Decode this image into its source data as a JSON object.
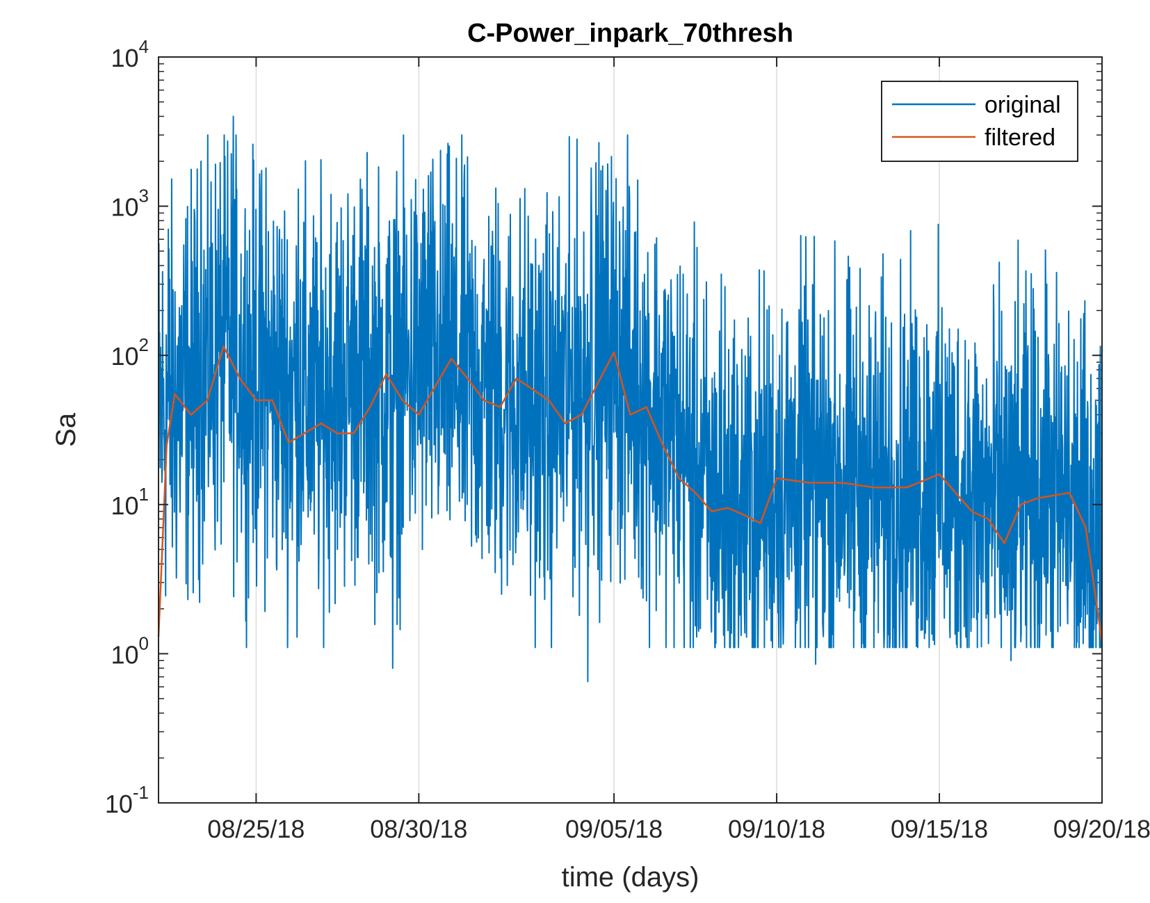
{
  "chart_data": {
    "type": "line",
    "title": "C-Power_inpark_70thresh",
    "xlabel": "time (days)",
    "ylabel": "Sa",
    "y_scale": "log",
    "ylim": [
      0.1,
      10000
    ],
    "y_ticks": [
      {
        "value": 0.1,
        "base": "10",
        "exp": "-1"
      },
      {
        "value": 1,
        "base": "10",
        "exp": "0"
      },
      {
        "value": 10,
        "base": "10",
        "exp": "1"
      },
      {
        "value": 100,
        "base": "10",
        "exp": "2"
      },
      {
        "value": 1000,
        "base": "10",
        "exp": "3"
      },
      {
        "value": 10000,
        "base": "10",
        "exp": "4"
      }
    ],
    "xlim": [
      "2018-08-22",
      "2018-09-20"
    ],
    "x_ticks": [
      {
        "date": "2018-08-25",
        "label": "08/25/18"
      },
      {
        "date": "2018-08-30",
        "label": "08/30/18"
      },
      {
        "date": "2018-09-05",
        "label": "09/05/18"
      },
      {
        "date": "2018-09-10",
        "label": "09/10/18"
      },
      {
        "date": "2018-09-15",
        "label": "09/15/18"
      },
      {
        "date": "2018-09-20",
        "label": "09/20/18"
      }
    ],
    "grid": "vertical",
    "legend_position": "top-right",
    "series": [
      {
        "name": "original",
        "color": "#0072BD",
        "style": "noisy",
        "envelope": {
          "x": [
            "2018-08-22",
            "2018-08-23",
            "2018-08-24",
            "2018-08-25",
            "2018-08-26",
            "2018-08-27",
            "2018-08-28",
            "2018-08-29",
            "2018-08-30",
            "2018-08-31",
            "2018-09-01",
            "2018-09-02",
            "2018-09-03",
            "2018-09-04",
            "2018-09-05",
            "2018-09-06",
            "2018-09-07",
            "2018-09-08",
            "2018-09-09",
            "2018-09-10",
            "2018-09-11",
            "2018-09-12",
            "2018-09-13",
            "2018-09-14",
            "2018-09-15",
            "2018-09-16",
            "2018-09-17",
            "2018-09-18",
            "2018-09-19",
            "2018-09-20"
          ],
          "y": [
            40,
            60,
            120,
            70,
            60,
            45,
            80,
            60,
            90,
            80,
            60,
            50,
            40,
            70,
            100,
            50,
            25,
            10,
            9,
            14,
            15,
            15,
            12,
            13,
            15,
            10,
            10,
            11,
            10,
            5
          ]
        },
        "peaks": [
          {
            "x": "2018-08-22",
            "y": 700
          },
          {
            "x": "2018-08-23",
            "y": 2000
          },
          {
            "x": "2018-08-24",
            "y": 4000
          },
          {
            "x": "2018-08-25",
            "y": 1800
          },
          {
            "x": "2018-08-26",
            "y": 1300
          },
          {
            "x": "2018-08-27",
            "y": 1200
          },
          {
            "x": "2018-08-30",
            "y": 1600
          },
          {
            "x": "2018-09-04",
            "y": 1800
          },
          {
            "x": "2018-09-08",
            "y": 350
          },
          {
            "x": "2018-09-14",
            "y": 180
          },
          {
            "x": "2018-09-18",
            "y": 300
          }
        ],
        "troughs": [
          {
            "x": "2018-08-29",
            "y": 0.8
          },
          {
            "x": "2018-09-04",
            "y": 0.65
          },
          {
            "x": "2018-09-11",
            "y": 0.85
          },
          {
            "x": "2018-09-17",
            "y": 0.9
          }
        ]
      },
      {
        "name": "filtered",
        "color": "#D95319",
        "style": "smooth",
        "x": [
          "2018-08-22",
          "2018-08-22 06:00",
          "2018-08-22 12:00",
          "2018-08-23",
          "2018-08-23 12:00",
          "2018-08-24",
          "2018-08-24 12:00",
          "2018-08-25",
          "2018-08-25 12:00",
          "2018-08-26",
          "2018-08-27",
          "2018-08-27 12:00",
          "2018-08-28",
          "2018-08-28 12:00",
          "2018-08-29",
          "2018-08-29 12:00",
          "2018-08-30",
          "2018-08-31",
          "2018-08-31 12:00",
          "2018-09-01",
          "2018-09-01 12:00",
          "2018-09-02",
          "2018-09-03",
          "2018-09-03 12:00",
          "2018-09-04",
          "2018-09-05",
          "2018-09-05 12:00",
          "2018-09-06",
          "2018-09-06 12:00",
          "2018-09-07",
          "2018-09-07 12:00",
          "2018-09-08",
          "2018-09-08 12:00",
          "2018-09-09",
          "2018-09-09 12:00",
          "2018-09-10",
          "2018-09-11",
          "2018-09-12",
          "2018-09-13",
          "2018-09-14",
          "2018-09-15",
          "2018-09-15 12:00",
          "2018-09-16",
          "2018-09-16 12:00",
          "2018-09-17",
          "2018-09-17 12:00",
          "2018-09-18",
          "2018-09-19",
          "2018-09-19 12:00",
          "2018-09-20"
        ],
        "y": [
          1.3,
          25,
          55,
          40,
          50,
          115,
          70,
          50,
          50,
          26,
          35,
          30,
          30,
          45,
          75,
          50,
          40,
          95,
          70,
          50,
          45,
          70,
          50,
          35,
          40,
          105,
          40,
          45,
          25,
          15,
          12,
          9,
          9.5,
          8.5,
          7.5,
          15,
          14,
          14,
          13,
          13,
          16,
          12,
          9,
          8,
          5.5,
          10,
          11,
          12,
          7,
          1.2
        ]
      }
    ]
  }
}
